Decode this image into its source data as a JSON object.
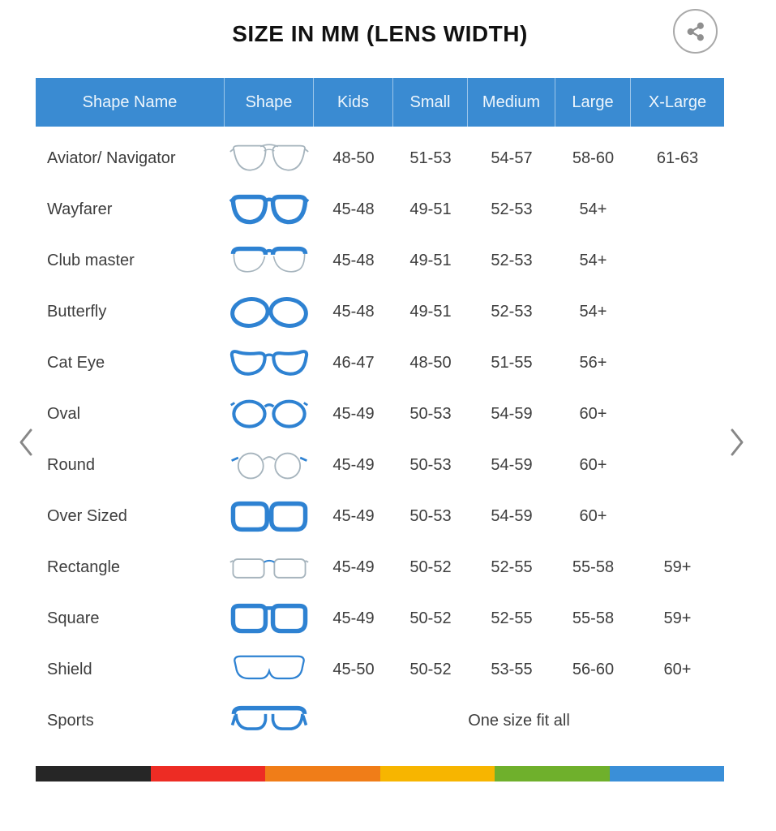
{
  "title": "SIZE IN MM (LENS WIDTH)",
  "share_button": {
    "icon": "share-icon"
  },
  "carousel": {
    "prev_icon": "chevron-left-icon",
    "next_icon": "chevron-right-icon"
  },
  "colors": {
    "header_bg": "#3a8bd2",
    "header_text": "#eef6fc",
    "frame_blue": "#2e82d2",
    "frame_light": "#a6b4bd",
    "row_text": "#3d3d3d"
  },
  "chart_data": {
    "type": "table",
    "title": "SIZE IN MM (LENS WIDTH)",
    "columns": [
      "Shape Name",
      "Shape",
      "Kids",
      "Small",
      "Medium",
      "Large",
      "X-Large"
    ],
    "rows": [
      {
        "name": "Aviator/ Navigator",
        "icon": "aviator-glasses-icon",
        "sizes": [
          "48-50",
          "51-53",
          "54-57",
          "58-60",
          "61-63"
        ]
      },
      {
        "name": "Wayfarer",
        "icon": "wayfarer-glasses-icon",
        "sizes": [
          "45-48",
          "49-51",
          "52-53",
          "54+",
          ""
        ]
      },
      {
        "name": "Club master",
        "icon": "clubmaster-glasses-icon",
        "sizes": [
          "45-48",
          "49-51",
          "52-53",
          "54+",
          ""
        ]
      },
      {
        "name": "Butterfly",
        "icon": "butterfly-glasses-icon",
        "sizes": [
          "45-48",
          "49-51",
          "52-53",
          "54+",
          ""
        ]
      },
      {
        "name": "Cat Eye",
        "icon": "cateye-glasses-icon",
        "sizes": [
          "46-47",
          "48-50",
          "51-55",
          "56+",
          ""
        ]
      },
      {
        "name": "Oval",
        "icon": "oval-glasses-icon",
        "sizes": [
          "45-49",
          "50-53",
          "54-59",
          "60+",
          ""
        ]
      },
      {
        "name": "Round",
        "icon": "round-glasses-icon",
        "sizes": [
          "45-49",
          "50-53",
          "54-59",
          "60+",
          ""
        ]
      },
      {
        "name": "Over Sized",
        "icon": "oversized-glasses-icon",
        "sizes": [
          "45-49",
          "50-53",
          "54-59",
          "60+",
          ""
        ]
      },
      {
        "name": "Rectangle",
        "icon": "rectangle-glasses-icon",
        "sizes": [
          "45-49",
          "50-52",
          "52-55",
          "55-58",
          "59+"
        ]
      },
      {
        "name": "Square",
        "icon": "square-glasses-icon",
        "sizes": [
          "45-49",
          "50-52",
          "52-55",
          "55-58",
          "59+"
        ]
      },
      {
        "name": "Shield",
        "icon": "shield-glasses-icon",
        "sizes": [
          "45-50",
          "50-52",
          "53-55",
          "56-60",
          "60+"
        ]
      },
      {
        "name": "Sports",
        "icon": "sports-glasses-icon",
        "span_text": "One size fit all"
      }
    ]
  },
  "footer_bar_colors": [
    "#262626",
    "#ed2c24",
    "#f07d18",
    "#f7b500",
    "#6fb02c",
    "#3a8fd8"
  ]
}
